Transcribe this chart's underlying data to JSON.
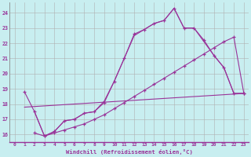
{
  "background_color": "#c8eef0",
  "grid_color": "#b0b0b0",
  "line_color": "#993399",
  "xlabel": "Windchill (Refroidissement éolien,°C)",
  "xlim": [
    -0.5,
    23.5
  ],
  "ylim": [
    15.5,
    24.7
  ],
  "yticks": [
    16,
    17,
    18,
    19,
    20,
    21,
    22,
    23,
    24
  ],
  "xticks": [
    0,
    1,
    2,
    3,
    4,
    5,
    6,
    7,
    8,
    9,
    10,
    11,
    12,
    13,
    14,
    15,
    16,
    17,
    18,
    19,
    20,
    21,
    22,
    23
  ],
  "lines": [
    {
      "x": [
        1,
        2,
        3,
        4,
        5,
        6,
        7,
        8,
        9,
        10,
        11,
        12,
        13,
        14,
        15,
        16,
        17,
        18,
        19,
        20,
        21,
        22,
        23
      ],
      "y": [
        18.8,
        17.5,
        15.9,
        16.2,
        16.9,
        17.0,
        17.4,
        17.5,
        18.1,
        19.5,
        21.0,
        22.6,
        22.9,
        23.3,
        23.5,
        24.3,
        23.0,
        23.0,
        22.2,
        21.2,
        20.4,
        18.7,
        18.7
      ],
      "marker": true
    },
    {
      "x": [
        2,
        3,
        4,
        5,
        6,
        7,
        8,
        9,
        10,
        11,
        12,
        13,
        14,
        15,
        16,
        17,
        18,
        19,
        20,
        21,
        22,
        23
      ],
      "y": [
        17.5,
        15.9,
        16.2,
        16.9,
        17.0,
        17.4,
        17.5,
        18.2,
        19.5,
        21.0,
        22.5,
        22.9,
        23.3,
        23.5,
        24.3,
        23.0,
        23.0,
        22.1,
        21.2,
        20.4,
        18.7,
        18.7
      ],
      "marker": false
    },
    {
      "x": [
        1,
        23
      ],
      "y": [
        17.8,
        18.7
      ],
      "marker": false
    },
    {
      "x": [
        2,
        3,
        4,
        5,
        6,
        7,
        8,
        9,
        10,
        11,
        12,
        13,
        14,
        15,
        16,
        17,
        18,
        19,
        20,
        21,
        22,
        23
      ],
      "y": [
        16.1,
        15.9,
        16.1,
        16.3,
        16.5,
        16.7,
        17.0,
        17.3,
        17.7,
        18.1,
        18.5,
        18.9,
        19.3,
        19.7,
        20.1,
        20.5,
        20.9,
        21.3,
        21.7,
        22.1,
        22.4,
        18.7
      ],
      "marker": true
    }
  ]
}
